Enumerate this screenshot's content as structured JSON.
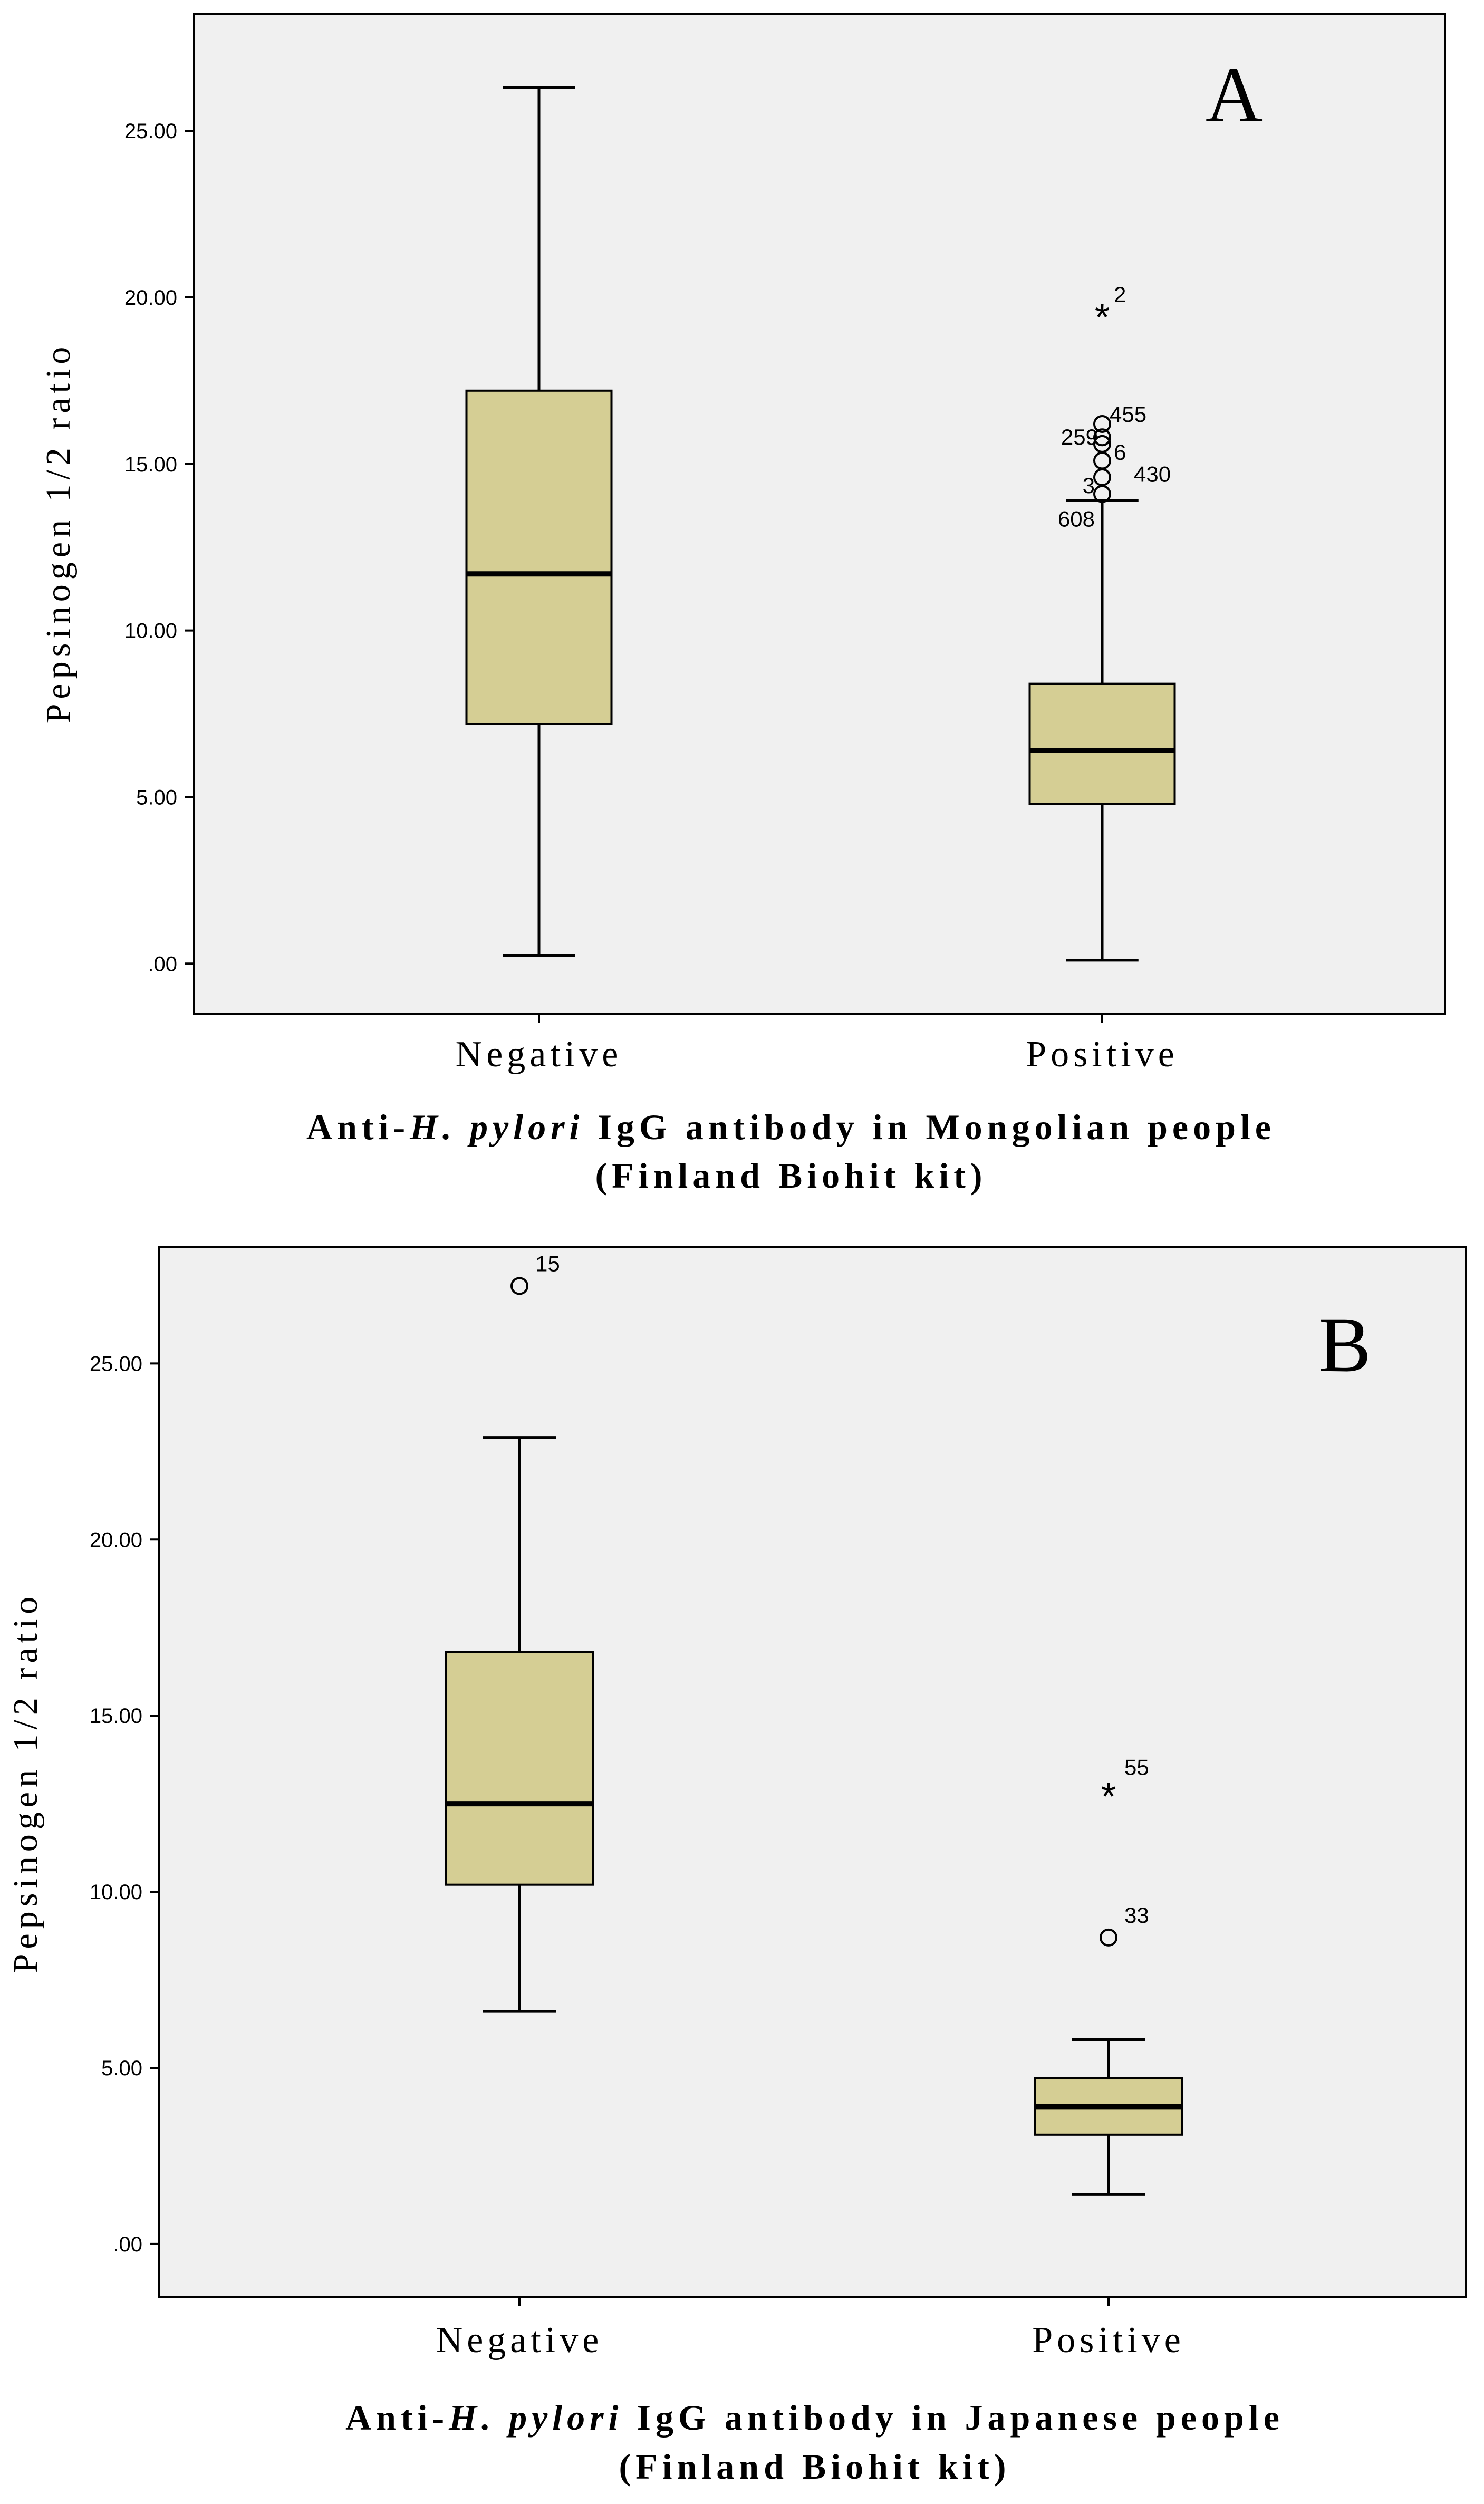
{
  "colors": {
    "plot_bg": "#f0f0f0",
    "box_fill": "#d5ce94",
    "stroke": "#000000",
    "page_bg": "#ffffff"
  },
  "chart_data": [
    {
      "type": "box",
      "panel_label": "A",
      "title": "",
      "ylabel": "Pepsinogen 1/2 ratio",
      "xlabel": {
        "prefix": "Anti-",
        "italic": "H. pylori",
        "suffix": " IgG antibody in Mongolian people",
        "line2": "(Finland Biohit kit)"
      },
      "categories": [
        "Negative",
        "Positive"
      ],
      "y_ticks": [
        ".00",
        "5.00",
        "10.00",
        "15.00",
        "20.00",
        "25.00"
      ],
      "y_tick_values": [
        0,
        5,
        10,
        15,
        20,
        25
      ],
      "ylim": [
        -1.5,
        28.5
      ],
      "grid": false,
      "boxes": [
        {
          "category": "Negative",
          "whisker_low": 0.25,
          "q1": 7.2,
          "median": 11.7,
          "q3": 17.2,
          "whisker_high": 26.3,
          "outliers": []
        },
        {
          "category": "Positive",
          "whisker_low": 0.1,
          "q1": 4.8,
          "median": 6.4,
          "q3": 8.4,
          "whisker_high": 13.9,
          "outliers": [
            {
              "value": 19.6,
              "marker": "star",
              "label": "2"
            },
            {
              "value": 16.2,
              "marker": "circle",
              "label": "455"
            },
            {
              "value": 15.8,
              "marker": "circle",
              "label": "259"
            },
            {
              "value": 15.6,
              "marker": "circle",
              "label": "6"
            },
            {
              "value": 15.1,
              "marker": "circle",
              "label": "430"
            },
            {
              "value": 14.6,
              "marker": "circle",
              "label": "3"
            },
            {
              "value": 14.1,
              "marker": "circle",
              "label": "608"
            }
          ]
        }
      ]
    },
    {
      "type": "box",
      "panel_label": "B",
      "title": "",
      "ylabel": "Pepsinogen 1/2 ratio",
      "xlabel": {
        "prefix": "Anti-",
        "italic": "H. pylori",
        "suffix": " IgG antibody in Japanese people",
        "line2": "(Finland Biohit kit)"
      },
      "categories": [
        "Negative",
        "Positive"
      ],
      "y_ticks": [
        ".00",
        "5.00",
        "10.00",
        "15.00",
        "20.00",
        "25.00"
      ],
      "y_tick_values": [
        0,
        5,
        10,
        15,
        20,
        25
      ],
      "ylim": [
        -1.5,
        28.3
      ],
      "grid": false,
      "boxes": [
        {
          "category": "Negative",
          "whisker_low": 6.6,
          "q1": 10.2,
          "median": 12.5,
          "q3": 16.8,
          "whisker_high": 22.9,
          "outliers": [
            {
              "value": 27.2,
              "marker": "circle",
              "label": "15"
            }
          ]
        },
        {
          "category": "Positive",
          "whisker_low": 1.4,
          "q1": 3.1,
          "median": 3.9,
          "q3": 4.7,
          "whisker_high": 5.8,
          "outliers": [
            {
              "value": 12.9,
              "marker": "star",
              "label": "55"
            },
            {
              "value": 8.7,
              "marker": "circle",
              "label": "33"
            }
          ]
        }
      ]
    }
  ]
}
